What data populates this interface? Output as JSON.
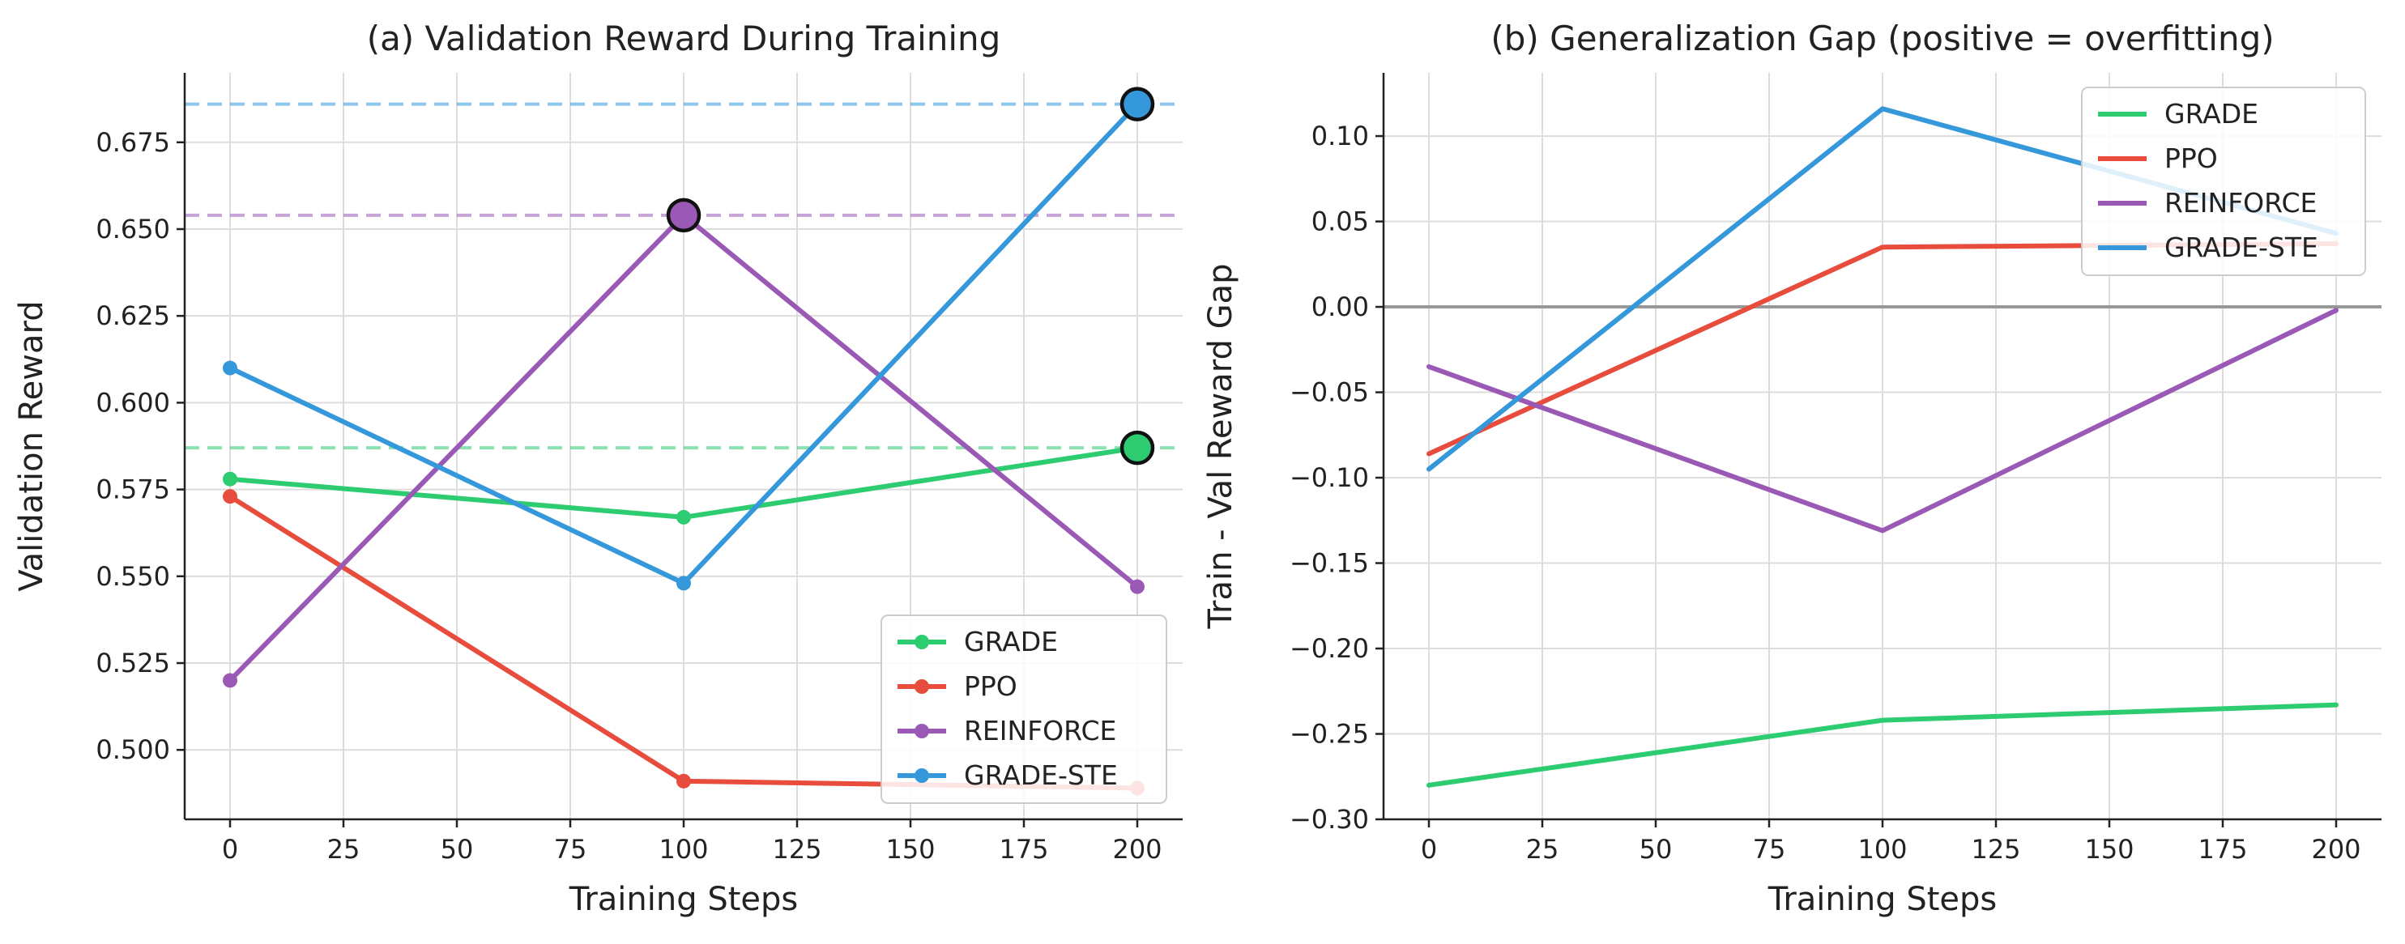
{
  "colors": {
    "GRADE": "#2ecc71",
    "PPO": "#e74c3c",
    "REINFORCE": "#9b59b6",
    "GRADE-STE": "#3498db"
  },
  "chart_data": [
    {
      "type": "line",
      "title": "(a) Validation Reward During Training",
      "xlabel": "Training Steps",
      "ylabel": "Validation Reward",
      "xlim": [
        -10,
        210
      ],
      "ylim": [
        0.48,
        0.695
      ],
      "xticks": [
        0,
        25,
        50,
        75,
        100,
        125,
        150,
        175,
        200
      ],
      "yticks": [
        0.5,
        0.525,
        0.55,
        0.575,
        0.6,
        0.625,
        0.65,
        0.675
      ],
      "ytick_labels": [
        "0.500",
        "0.525",
        "0.550",
        "0.575",
        "0.600",
        "0.625",
        "0.650",
        "0.675"
      ],
      "grid": true,
      "markers": true,
      "legend": "lower-right",
      "x": [
        0,
        100,
        200
      ],
      "series": [
        {
          "name": "GRADE",
          "values": [
            0.578,
            0.567,
            0.587
          ]
        },
        {
          "name": "PPO",
          "values": [
            0.573,
            0.491,
            0.489
          ]
        },
        {
          "name": "REINFORCE",
          "values": [
            0.52,
            0.654,
            0.547
          ]
        },
        {
          "name": "GRADE-STE",
          "values": [
            0.61,
            0.548,
            0.686
          ]
        }
      ],
      "best_lines": [
        {
          "series": "GRADE-STE",
          "value": 0.686
        },
        {
          "series": "REINFORCE",
          "value": 0.654
        },
        {
          "series": "GRADE",
          "value": 0.587
        }
      ],
      "best_points": [
        {
          "series": "REINFORCE",
          "x": 100,
          "y": 0.654
        },
        {
          "series": "GRADE-STE",
          "x": 200,
          "y": 0.686
        },
        {
          "series": "GRADE",
          "x": 200,
          "y": 0.587
        }
      ]
    },
    {
      "type": "line",
      "title": "(b) Generalization Gap (positive = overfitting)",
      "xlabel": "Training Steps",
      "ylabel": "Train - Val Reward Gap",
      "xlim": [
        -10,
        210
      ],
      "ylim": [
        -0.3,
        0.137
      ],
      "xticks": [
        0,
        25,
        50,
        75,
        100,
        125,
        150,
        175,
        200
      ],
      "yticks": [
        -0.3,
        -0.25,
        -0.2,
        -0.15,
        -0.1,
        -0.05,
        0.0,
        0.05,
        0.1
      ],
      "ytick_labels": [
        "−0.30",
        "−0.25",
        "−0.20",
        "−0.15",
        "−0.10",
        "−0.05",
        "0.00",
        "0.05",
        "0.10"
      ],
      "grid": true,
      "markers": false,
      "zero_line": 0,
      "legend": "upper-right",
      "x": [
        0,
        100,
        200
      ],
      "series": [
        {
          "name": "GRADE",
          "values": [
            -0.28,
            -0.242,
            -0.233
          ]
        },
        {
          "name": "PPO",
          "values": [
            -0.086,
            0.035,
            0.037
          ]
        },
        {
          "name": "REINFORCE",
          "values": [
            -0.035,
            -0.131,
            -0.002
          ]
        },
        {
          "name": "GRADE-STE",
          "values": [
            -0.095,
            0.116,
            0.043
          ]
        }
      ]
    }
  ]
}
